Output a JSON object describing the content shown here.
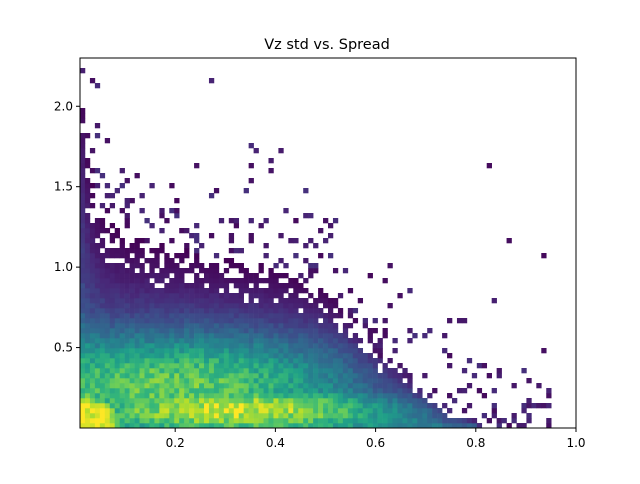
{
  "chart_data": {
    "type": "heatmap",
    "title": "Vz std vs. Spread",
    "xlabel": "",
    "ylabel": "",
    "xlim": [
      0.01,
      1.0
    ],
    "ylim": [
      0.0,
      2.3
    ],
    "xticks": [
      0.2,
      0.4,
      0.6,
      0.8,
      1.0
    ],
    "xtick_labels": [
      "0.2",
      "0.4",
      "0.6",
      "0.8",
      "1.0"
    ],
    "yticks": [
      0.5,
      1.0,
      1.5,
      2.0
    ],
    "ytick_labels": [
      "0.5",
      "1.0",
      "1.5",
      "2.0"
    ],
    "colormap": "viridis",
    "log_color_scale": true,
    "grid": false,
    "dense_region": {
      "y_cutoff": [
        [
          0.01,
          2.3
        ],
        [
          0.03,
          1.55
        ],
        [
          0.06,
          1.3
        ],
        [
          0.1,
          1.2
        ],
        [
          0.2,
          1.12
        ],
        [
          0.3,
          1.05
        ],
        [
          0.4,
          1.0
        ],
        [
          0.5,
          0.85
        ],
        [
          0.55,
          0.65
        ],
        [
          0.6,
          0.45
        ],
        [
          0.65,
          0.35
        ],
        [
          0.7,
          0.22
        ],
        [
          0.74,
          0.1
        ],
        [
          0.8,
          0.05
        ]
      ],
      "sparse_outliers_x_max": 0.95,
      "peak": {
        "x": 0.015,
        "y": 0.05
      }
    }
  }
}
